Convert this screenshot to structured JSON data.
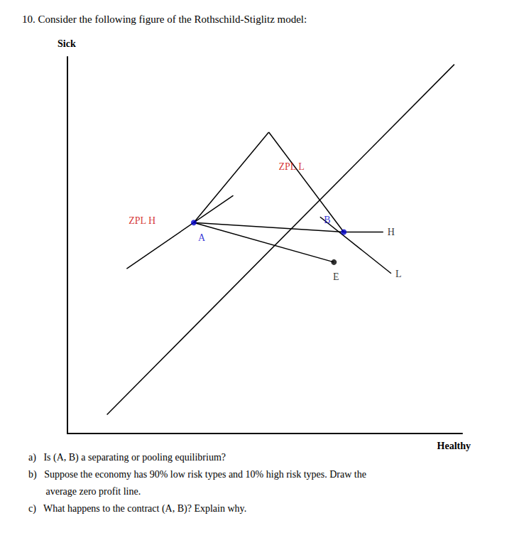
{
  "chart_data": {
    "type": "line",
    "title": "10. Consider the following figure of the Rothschild-Stiglitz model:",
    "xlabel": "Healthy",
    "ylabel": "Sick",
    "xlim": [
      0,
      10
    ],
    "ylim": [
      0,
      10
    ],
    "tick_labels": false,
    "grid": false,
    "series": [
      {
        "type": "line",
        "line_style": "solid",
        "color": "#000000",
        "x": [
          1.0,
          9.8
        ],
        "values": [
          0.5,
          9.8
        ]
      },
      {
        "type": "line",
        "line_style": "solid",
        "color": "#000000",
        "x": [
          1.5,
          4.2
        ],
        "values": [
          4.376,
          6.32
        ]
      },
      {
        "type": "line",
        "line_style": "solid",
        "color": "#000000",
        "x": [
          3.2,
          5.1
        ],
        "values": [
          5.6,
          8.0
        ]
      },
      {
        "type": "line",
        "line_style": "solid",
        "color": "#000000",
        "x": [
          5.1,
          7.0
        ],
        "values": [
          8.0,
          5.35
        ]
      },
      {
        "type": "line",
        "line_style": "solid",
        "color": "#000000",
        "x": [
          3.2,
          7.0
        ],
        "values": [
          5.6,
          5.35
        ]
      },
      {
        "type": "line",
        "line_style": "solid",
        "color": "#000000",
        "x": [
          3.2,
          6.75
        ],
        "values": [
          5.6,
          4.55
        ]
      },
      {
        "type": "line",
        "line_style": "solid",
        "color": "#000000",
        "x": [
          7.0,
          8.0
        ],
        "values": [
          5.35,
          5.35
        ]
      },
      {
        "type": "line",
        "line_style": "solid",
        "color": "#000000",
        "x": [
          6.4,
          8.2
        ],
        "values": [
          5.75,
          4.25
        ]
      },
      {
        "type": "scatter",
        "marker": "circle",
        "color": "#0000cc",
        "x": [
          3.2,
          7.0
        ],
        "values": [
          5.6,
          5.35
        ]
      },
      {
        "type": "scatter",
        "marker": "circle",
        "color": "#000000",
        "x": [
          6.75
        ],
        "values": [
          4.55
        ]
      }
    ],
    "annotations": [
      {
        "text": "ZPL L",
        "x": 5.35,
        "y": 6.95,
        "color": "#cc0000"
      },
      {
        "text": "ZPL H",
        "x": 1.55,
        "y": 5.65,
        "color": "#cc0000"
      },
      {
        "text": "A",
        "x": 3.2,
        "y": 5.6,
        "color": "#0000cc"
      },
      {
        "text": "B",
        "x": 7.0,
        "y": 5.35,
        "color": "#0000cc"
      },
      {
        "text": "E",
        "x": 6.75,
        "y": 4.55,
        "color": "#000000"
      },
      {
        "text": "H",
        "x": 8.0,
        "y": 5.35,
        "color": "#000000"
      },
      {
        "text": "L",
        "x": 8.2,
        "y": 4.25,
        "color": "#000000"
      }
    ],
    "questions": [
      "a)   Is (A, B) a separating or pooling equilibrium?",
      "b)   Suppose the economy has 90% low risk types and 10% high risk types. Draw the",
      "       average zero profit line.",
      "c)   What happens to the contract (A, B)? Explain why."
    ]
  }
}
